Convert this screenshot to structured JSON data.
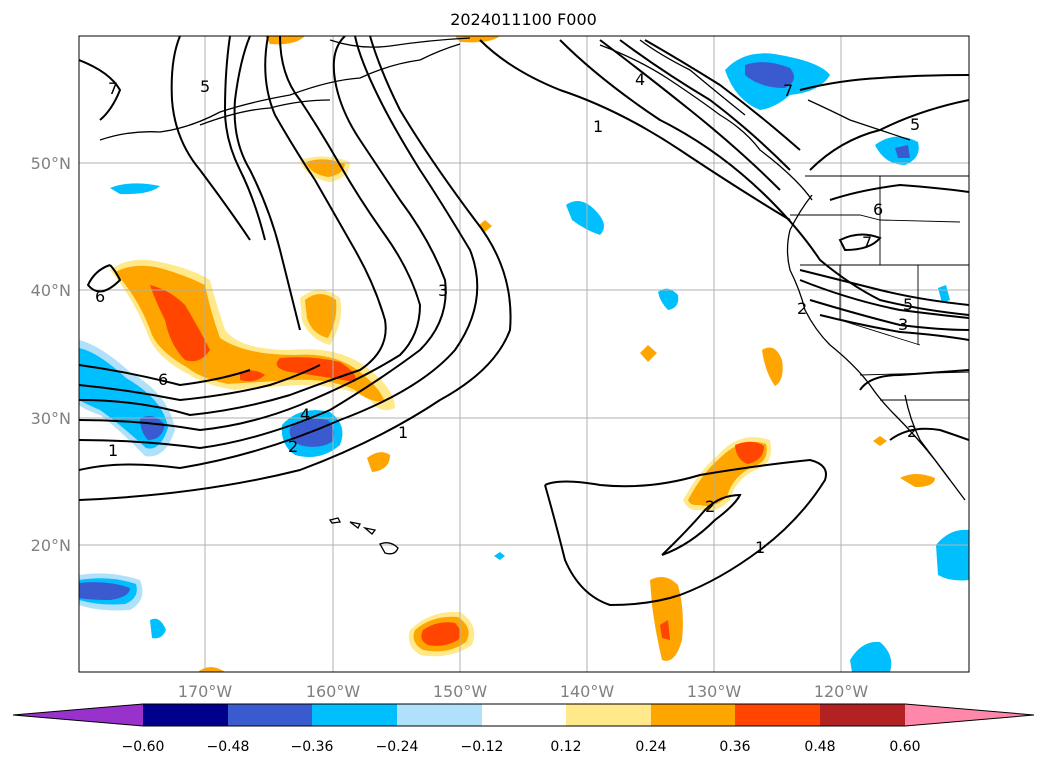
{
  "title": "2024011100 F000",
  "lon_labels": [
    "170°W",
    "160°W",
    "150°W",
    "140°W",
    "130°W",
    "120°W"
  ],
  "lat_labels": [
    "50°N",
    "40°N",
    "30°N",
    "20°N"
  ],
  "colorbar": {
    "ticks": [
      "−0.60",
      "−0.48",
      "−0.36",
      "−0.24",
      "−0.12",
      "0.12",
      "0.24",
      "0.36",
      "0.48",
      "0.60"
    ],
    "colors": [
      "#9932cc",
      "#00008b",
      "#3a5bd0",
      "#00bfff",
      "#b0e0fa",
      "#ffffff",
      "#ffe98a",
      "#ffa500",
      "#ff4500",
      "#b22222",
      "#ff88aa"
    ]
  },
  "contour_labels": [
    "7",
    "5",
    "1",
    "4",
    "5",
    "6",
    "7",
    "6",
    "3",
    "5",
    "3",
    "2",
    "6",
    "1",
    "4",
    "2",
    "1",
    "2",
    "1",
    "7",
    "2"
  ],
  "colors": {
    "gridline": "#b0b0b0",
    "contour": "#000000",
    "coast": "#000000",
    "tick_text": "#808080"
  }
}
